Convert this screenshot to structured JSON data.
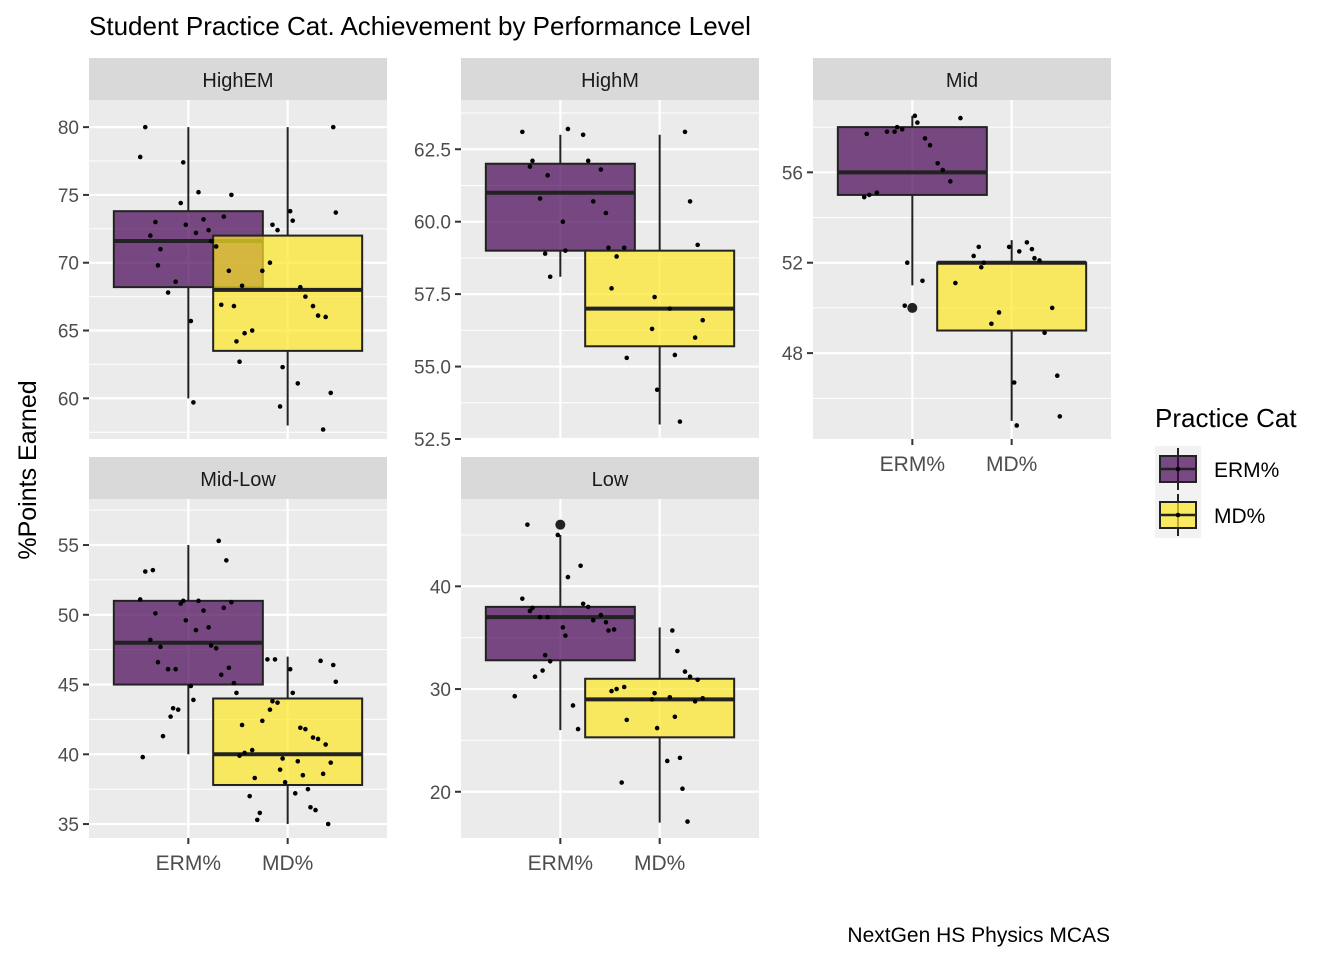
{
  "chart_data": {
    "type": "boxplot",
    "title": "Student Practice Cat. Achievement by Performance Level",
    "ylabel": "%Points Earned",
    "caption": "NextGen HS Physics MCAS",
    "categories": [
      "ERM%",
      "MD%"
    ],
    "legend": {
      "title": "Practice Cat",
      "position": "right",
      "entries": [
        {
          "name": "ERM%",
          "color": "#440154"
        },
        {
          "name": "MD%",
          "color": "#FDE725"
        }
      ]
    },
    "colors": {
      "ERM%": "#440154",
      "MD%": "#FDE725",
      "panel_bg": "#EBEBEB",
      "strip_bg": "#D9D9D9",
      "grid": "#FFFFFF"
    },
    "panels": [
      {
        "name": "HighEM",
        "ylim": [
          57,
          82
        ],
        "yticks": [
          60,
          65,
          70,
          75,
          80
        ],
        "ytick_labels": [
          "60",
          "65",
          "70",
          "75",
          "80"
        ],
        "boxes": [
          {
            "category": "ERM%",
            "lower_whisker": 60,
            "q1": 68.2,
            "median": 71.6,
            "q3": 73.8,
            "upper_whisker": 80,
            "outliers": []
          },
          {
            "category": "MD%",
            "lower_whisker": 58,
            "q1": 63.5,
            "median": 68,
            "q3": 72,
            "upper_whisker": 80,
            "outliers": []
          }
        ],
        "points": [
          {
            "category": "ERM%",
            "y": [
              80,
              77.8,
              77.4,
              75.2,
              75,
              74.4,
              73.4,
              73.2,
              73,
              72.8,
              72.4,
              72.2,
              72,
              71.6,
              71.2,
              71,
              69.8,
              69.4,
              68.6,
              67.8,
              66.9,
              66.8,
              65.7,
              64.2,
              59.7
            ]
          },
          {
            "category": "MD%",
            "y": [
              80,
              73.8,
              73.7,
              73.1,
              72.8,
              72.4,
              70,
              69.4,
              68.3,
              68.2,
              67.5,
              66.8,
              66.1,
              66,
              65,
              64.8,
              62.7,
              62.3,
              61.1,
              60.4,
              59.4,
              57.7
            ]
          }
        ]
      },
      {
        "name": "HighM",
        "ylim": [
          52.5,
          64.2
        ],
        "yticks": [
          52.5,
          55,
          57.5,
          60,
          62.5
        ],
        "ytick_labels": [
          "52.5",
          "55.0",
          "57.5",
          "60.0",
          "62.5"
        ],
        "boxes": [
          {
            "category": "ERM%",
            "lower_whisker": 58.1,
            "q1": 59,
            "median": 61,
            "q3": 62,
            "upper_whisker": 63,
            "outliers": []
          },
          {
            "category": "MD%",
            "lower_whisker": 53,
            "q1": 55.7,
            "median": 57,
            "q3": 59,
            "upper_whisker": 63,
            "outliers": []
          }
        ],
        "points": [
          {
            "category": "ERM%",
            "y": [
              63.2,
              63.1,
              63,
              62.1,
              62.1,
              61.9,
              61.8,
              61.6,
              60.8,
              60.7,
              60.3,
              60,
              59.1,
              59,
              58.9,
              58.1
            ]
          },
          {
            "category": "MD%",
            "y": [
              63.1,
              60.7,
              59.2,
              59.1,
              58.8,
              57.7,
              57.4,
              57,
              56.6,
              56.3,
              56,
              55.4,
              55.3,
              54.2,
              53.1
            ]
          }
        ]
      },
      {
        "name": "Mid",
        "ylim": [
          44.2,
          59.2
        ],
        "yticks": [
          48,
          52,
          56
        ],
        "ytick_labels": [
          "48",
          "52",
          "56"
        ],
        "boxes": [
          {
            "category": "ERM%",
            "lower_whisker": 51,
            "q1": 55,
            "median": 56,
            "q3": 58,
            "upper_whisker": 58.5,
            "outliers": [
              50
            ]
          },
          {
            "category": "MD%",
            "lower_whisker": 45,
            "q1": 49,
            "median": 52,
            "q3": 52,
            "upper_whisker": 53,
            "outliers": []
          }
        ],
        "points": [
          {
            "category": "ERM%",
            "y": [
              58.5,
              58.4,
              58.2,
              58,
              57.9,
              57.8,
              57.8,
              57.7,
              57.5,
              57.2,
              56.4,
              56.1,
              55.6,
              55.1,
              55,
              54.9,
              52,
              51.2,
              51.1,
              50.1
            ]
          },
          {
            "category": "MD%",
            "y": [
              52.9,
              52.7,
              52.7,
              52.6,
              52.5,
              52.3,
              52.2,
              52.1,
              52,
              51.8,
              50,
              49.8,
              49.3,
              48.9,
              47,
              46.7,
              45.2,
              44.8
            ]
          }
        ]
      },
      {
        "name": "Mid-Low",
        "ylim": [
          34,
          58.3
        ],
        "yticks": [
          35,
          40,
          45,
          50,
          55
        ],
        "ytick_labels": [
          "35",
          "40",
          "45",
          "50",
          "55"
        ],
        "boxes": [
          {
            "category": "ERM%",
            "lower_whisker": 40,
            "q1": 45,
            "median": 48,
            "q3": 51,
            "upper_whisker": 55,
            "outliers": []
          },
          {
            "category": "MD%",
            "lower_whisker": 35,
            "q1": 37.8,
            "median": 40,
            "q3": 44,
            "upper_whisker": 47,
            "outliers": []
          }
        ],
        "points": [
          {
            "category": "ERM%",
            "y": [
              55.3,
              53.9,
              53.2,
              53.1,
              51.1,
              51,
              51,
              50.9,
              50.8,
              50.5,
              50.3,
              50.1,
              49.6,
              49.1,
              48.9,
              48.2,
              47.8,
              47.6,
              47.7,
              46.6,
              46.2,
              46.1,
              46.1,
              45.7,
              45.1,
              44.9,
              44.4,
              43.9,
              43.3,
              43.2,
              42.7,
              41.3,
              39.8
            ]
          },
          {
            "category": "MD%",
            "y": [
              46.8,
              46.8,
              46.7,
              46.4,
              46.1,
              45.2,
              44.4,
              43.8,
              43.7,
              43.2,
              42.4,
              42.1,
              41.9,
              41.8,
              41.2,
              41.1,
              40.7,
              40.3,
              40.1,
              39.9,
              39.7,
              39.5,
              39.4,
              38.9,
              38.6,
              38.5,
              38.3,
              38,
              37.5,
              37.2,
              37,
              36.2,
              36,
              35.8,
              35.3,
              35
            ]
          }
        ]
      },
      {
        "name": "Low",
        "ylim": [
          15.5,
          48.5
        ],
        "yticks": [
          20,
          30,
          40
        ],
        "ytick_labels": [
          "20",
          "30",
          "40"
        ],
        "boxes": [
          {
            "category": "ERM%",
            "lower_whisker": 26,
            "q1": 32.8,
            "median": 37,
            "q3": 38,
            "upper_whisker": 45,
            "outliers": [
              46
            ]
          },
          {
            "category": "MD%",
            "lower_whisker": 17,
            "q1": 25.3,
            "median": 29,
            "q3": 31,
            "upper_whisker": 36,
            "outliers": []
          }
        ],
        "points": [
          {
            "category": "ERM%",
            "y": [
              46,
              45,
              42,
              40.9,
              38.8,
              38.3,
              38,
              37.9,
              37.6,
              37.2,
              37,
              37,
              36.7,
              36.5,
              36,
              35.7,
              35.2,
              33.3,
              32.7,
              31.8,
              31.2,
              29.3,
              28.4,
              26.1
            ]
          },
          {
            "category": "MD%",
            "y": [
              35.8,
              35.7,
              33.7,
              31.7,
              31.2,
              30.9,
              30.2,
              30,
              29.8,
              29.6,
              29.2,
              29.1,
              29,
              28.8,
              27.3,
              27,
              26.2,
              23.3,
              23,
              20.9,
              20.3,
              17.1
            ]
          }
        ]
      }
    ]
  }
}
